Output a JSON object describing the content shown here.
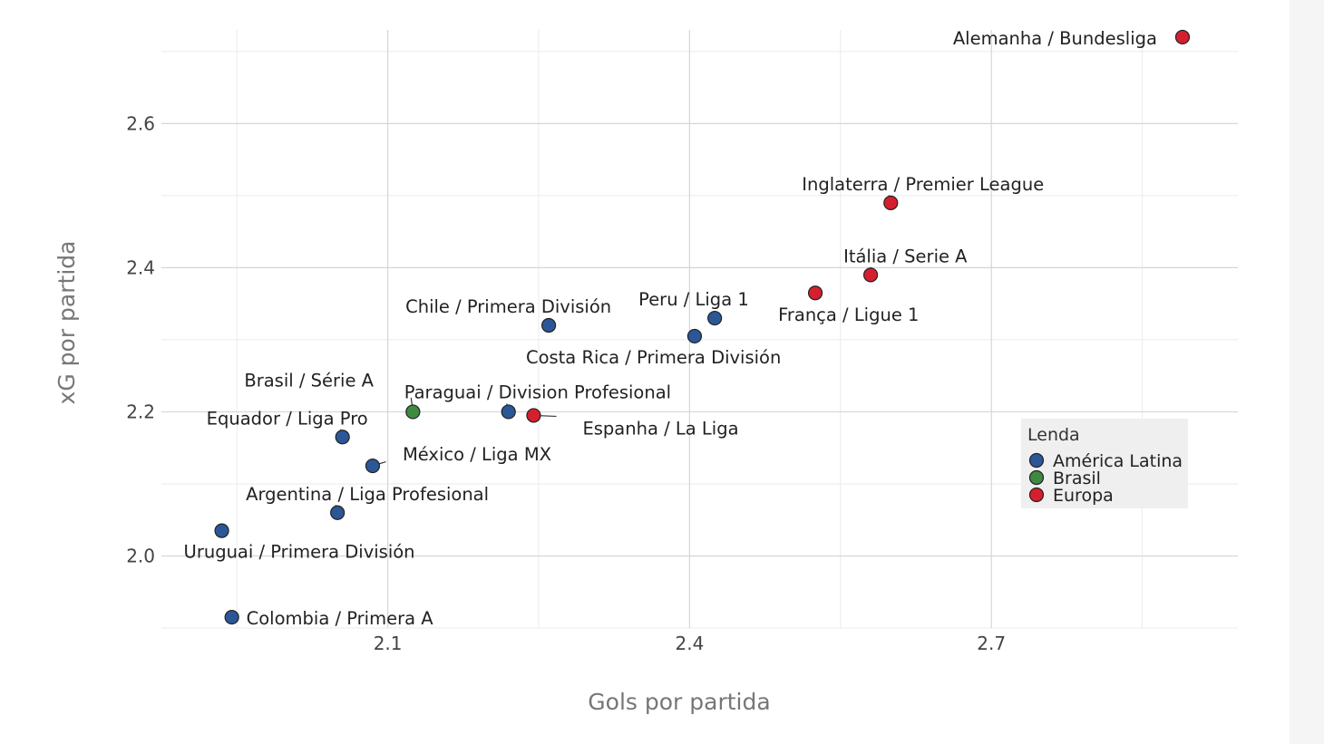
{
  "chart_data": {
    "type": "scatter",
    "xlabel": "Gols por partida",
    "ylabel": "xG por partida",
    "xlim": [
      1.875,
      2.945
    ],
    "ylim": [
      1.9,
      2.73
    ],
    "x_ticks": [
      2.1,
      2.4,
      2.7
    ],
    "y_ticks": [
      2.0,
      2.2,
      2.4,
      2.6
    ],
    "x_tick_labels": [
      "2.1",
      "2.4",
      "2.7"
    ],
    "y_tick_labels": [
      "2.0",
      "2.2",
      "2.4",
      "2.6"
    ],
    "grid": true,
    "legend": {
      "title": "Lenda",
      "placement": "right",
      "entries": [
        {
          "name": "América Latina",
          "color": "#2b5797"
        },
        {
          "name": "Brasil",
          "color": "#3e8a41"
        },
        {
          "name": "Europa",
          "color": "#d51f2f"
        }
      ]
    },
    "points": [
      {
        "label": "Alemanha / Bundesliga",
        "x": 2.89,
        "y": 2.72,
        "group": "Europa"
      },
      {
        "label": "Inglaterra / Premier League",
        "x": 2.6,
        "y": 2.49,
        "group": "Europa"
      },
      {
        "label": "Itália / Serie A",
        "x": 2.58,
        "y": 2.39,
        "group": "Europa"
      },
      {
        "label": "França / Ligue 1",
        "x": 2.525,
        "y": 2.365,
        "group": "Europa"
      },
      {
        "label": "Espanha / La Liga",
        "x": 2.245,
        "y": 2.195,
        "group": "Europa"
      },
      {
        "label": "Peru / Liga 1",
        "x": 2.425,
        "y": 2.33,
        "group": "América Latina"
      },
      {
        "label": "Costa Rica / Primera División",
        "x": 2.405,
        "y": 2.305,
        "group": "América Latina"
      },
      {
        "label": "Chile / Primera División",
        "x": 2.26,
        "y": 2.32,
        "group": "América Latina"
      },
      {
        "label": "Paraguai / Division Profesional",
        "x": 2.22,
        "y": 2.2,
        "group": "América Latina"
      },
      {
        "label": "Brasil / Série A",
        "x": 2.125,
        "y": 2.2,
        "group": "Brasil"
      },
      {
        "label": "Equador / Liga Pro",
        "x": 2.055,
        "y": 2.165,
        "group": "América Latina"
      },
      {
        "label": "México / Liga MX",
        "x": 2.085,
        "y": 2.125,
        "group": "América Latina"
      },
      {
        "label": "Argentina / Liga Profesional",
        "x": 2.05,
        "y": 2.06,
        "group": "América Latina"
      },
      {
        "label": "Uruguai / Primera División",
        "x": 1.935,
        "y": 2.035,
        "group": "América Latina"
      },
      {
        "label": "Colombia / Primera A",
        "x": 1.945,
        "y": 1.915,
        "group": "América Latina"
      }
    ]
  }
}
